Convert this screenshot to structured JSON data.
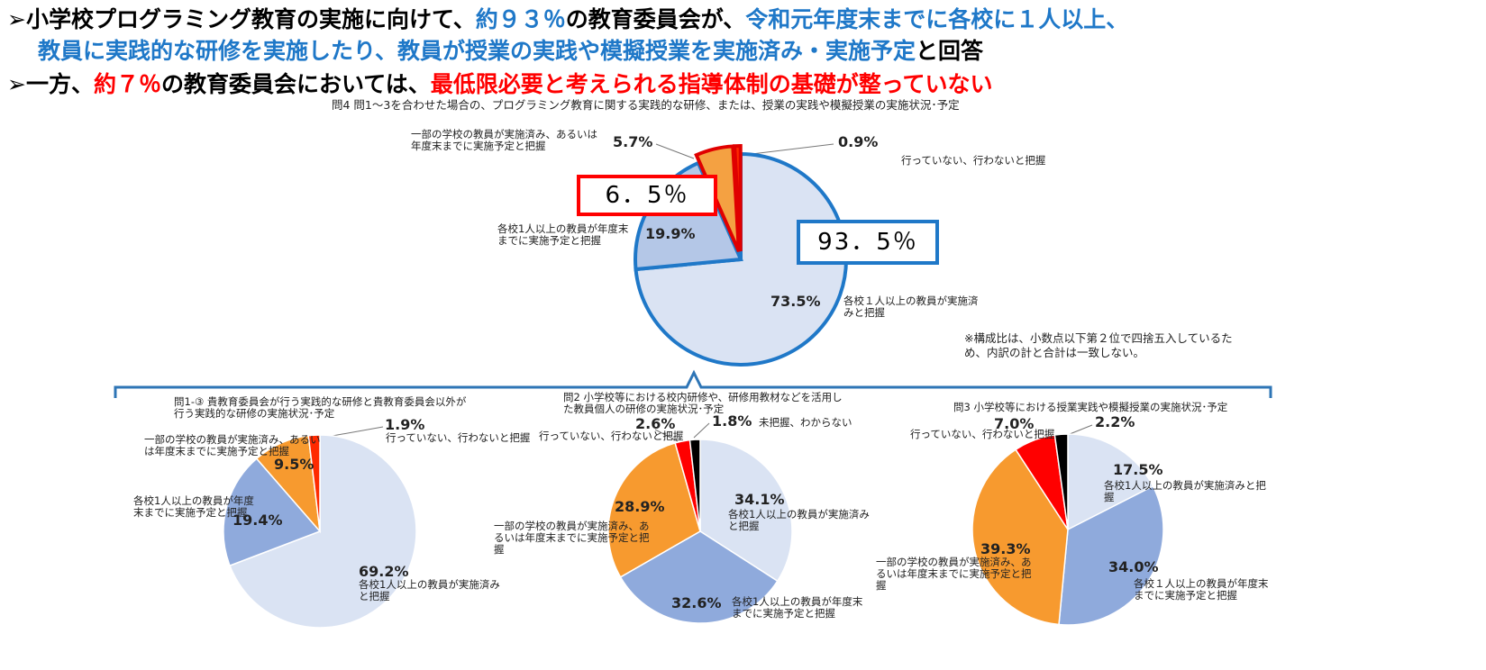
{
  "headline": [
    [
      {
        "text": "➢小学校プログラミング教育の実施に向けて、",
        "color": "#000000"
      },
      {
        "text": "約９３％",
        "color": "#1f78c8"
      },
      {
        "text": "の教育委員会が、",
        "color": "#000000"
      },
      {
        "text": "令和元年度末までに各校に１人以上、",
        "color": "#1f78c8"
      }
    ],
    [
      {
        "text": "教員に実践的な研修を実施したり、教員が授業の実践や模擬授業を実施済み・実施予定",
        "color": "#1f78c8"
      },
      {
        "text": "と回答",
        "color": "#000000"
      }
    ],
    [
      {
        "text": "➢一方、",
        "color": "#000000"
      },
      {
        "text": "約７％",
        "color": "#ff0000"
      },
      {
        "text": "の教育委員会においては、",
        "color": "#000000"
      },
      {
        "text": "最低限必要と考えられる指導体制の基礎が整っていない",
        "color": "#ff0000"
      }
    ]
  ],
  "chart_data": [
    {
      "type": "pie",
      "title": "問4 問1～3を合わせた場合の、プログラミング教育に関する実践的な研修、または、授業の実践や模擬授業の実施状況･予定",
      "categories": [
        "各校１人以上の教員が実施済みと把握",
        "各校1人以上の教員が年度末までに実施予定と把握",
        "一部の学校の教員が実施済み、あるいは年度末までに実施予定と把握",
        "行っていない、行わないと把握"
      ],
      "values": [
        73.5,
        19.9,
        5.7,
        0.9
      ],
      "value_labels": [
        "73.5%",
        "19.9%",
        "5.7%",
        "0.9%"
      ],
      "colors": [
        "#dae3f3",
        "#b4c7e7",
        "#f4a142",
        "#ff2a00"
      ],
      "annotations": [
        "6．5％",
        "93．5％"
      ],
      "note": "※構成比は、小数点以下第２位で四捨五入しているため、内訳の計と合計は一致しない。"
    },
    {
      "type": "pie",
      "title": "問1-③ 貴教育委員会が行う実践的な研修と貴教育委員会以外が行う実践的な研修の実施状況･予定",
      "categories": [
        "各校1人以上の教員が実施済みと把握",
        "各校1人以上の教員が年度末までに実施予定と把握",
        "一部の学校の教員が実施済み、あるいは年度末までに実施予定と把握",
        "行っていない、行わないと把握"
      ],
      "values": [
        69.2,
        19.4,
        9.5,
        1.9
      ],
      "value_labels": [
        "69.2%",
        "19.4%",
        "9.5%",
        "1.9%"
      ],
      "colors": [
        "#dae3f3",
        "#8faadc",
        "#f79a2f",
        "#ff2a00"
      ]
    },
    {
      "type": "pie",
      "title": "問2 小学校等における校内研修や、研修用教材などを活用した教員個人の研修の実施状況･予定",
      "categories": [
        "各校1人以上の教員が実施済みと把握",
        "各校1人以上の教員が年度末までに実施予定と把握",
        "一部の学校の教員が実施済み、あるいは年度末までに実施予定と把握",
        "行っていない、行わないと把握",
        "未把握、わからない"
      ],
      "values": [
        34.1,
        32.6,
        28.9,
        2.6,
        1.8
      ],
      "value_labels": [
        "34.1%",
        "32.6%",
        "28.9%",
        "2.6%",
        "1.8%"
      ],
      "colors": [
        "#dae3f3",
        "#8faadc",
        "#f79a2f",
        "#ff0000",
        "#000000"
      ]
    },
    {
      "type": "pie",
      "title": "問3 小学校等における授業実践や模擬授業の実施状況･予定",
      "categories": [
        "各校1人以上の教員が実施済みと把握",
        "各校１人以上の教員が年度末までに実施予定と把握",
        "一部の学校の教員が実施済み、あるいは年度末までに実施予定と把握",
        "行っていない、行わないと把握",
        null
      ],
      "values": [
        17.5,
        34.0,
        39.3,
        7.0,
        2.2
      ],
      "value_labels": [
        "17.5%",
        "34.0%",
        "39.3%",
        "7.0%",
        "2.2%"
      ],
      "colors": [
        "#dae3f3",
        "#8faadc",
        "#f79a2f",
        "#ff0000",
        "#000000"
      ]
    }
  ]
}
